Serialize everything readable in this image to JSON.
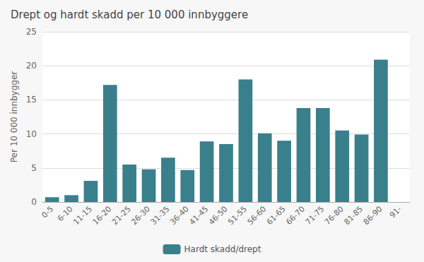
{
  "chart_data": {
    "type": "bar",
    "title": "Drept og hardt skadd per 10 000 innbyggere",
    "ylabel": "Per 10 000 innbygger",
    "categories": [
      "0-5",
      "6-10",
      "11-15",
      "16-20",
      "21-25",
      "26-30",
      "31-35",
      "36-40",
      "41-45",
      "46-50",
      "51-55",
      "56-60",
      "61-65",
      "66-70",
      "71-75",
      "76-80",
      "81-85",
      "86-90",
      "91-"
    ],
    "series": [
      {
        "name": "Hardt skadd/drept",
        "color": "#3a7f8c",
        "values": [
          0.7,
          1.0,
          3.1,
          17.2,
          5.5,
          4.8,
          6.5,
          4.7,
          8.9,
          8.5,
          18.0,
          10.1,
          9.0,
          13.8,
          13.8,
          10.5,
          9.9,
          20.9,
          0.0
        ]
      }
    ],
    "ylim": [
      0,
      25
    ],
    "yticks": [
      0,
      5,
      10,
      15,
      20,
      25
    ],
    "grid": true,
    "legend": "bottom"
  }
}
